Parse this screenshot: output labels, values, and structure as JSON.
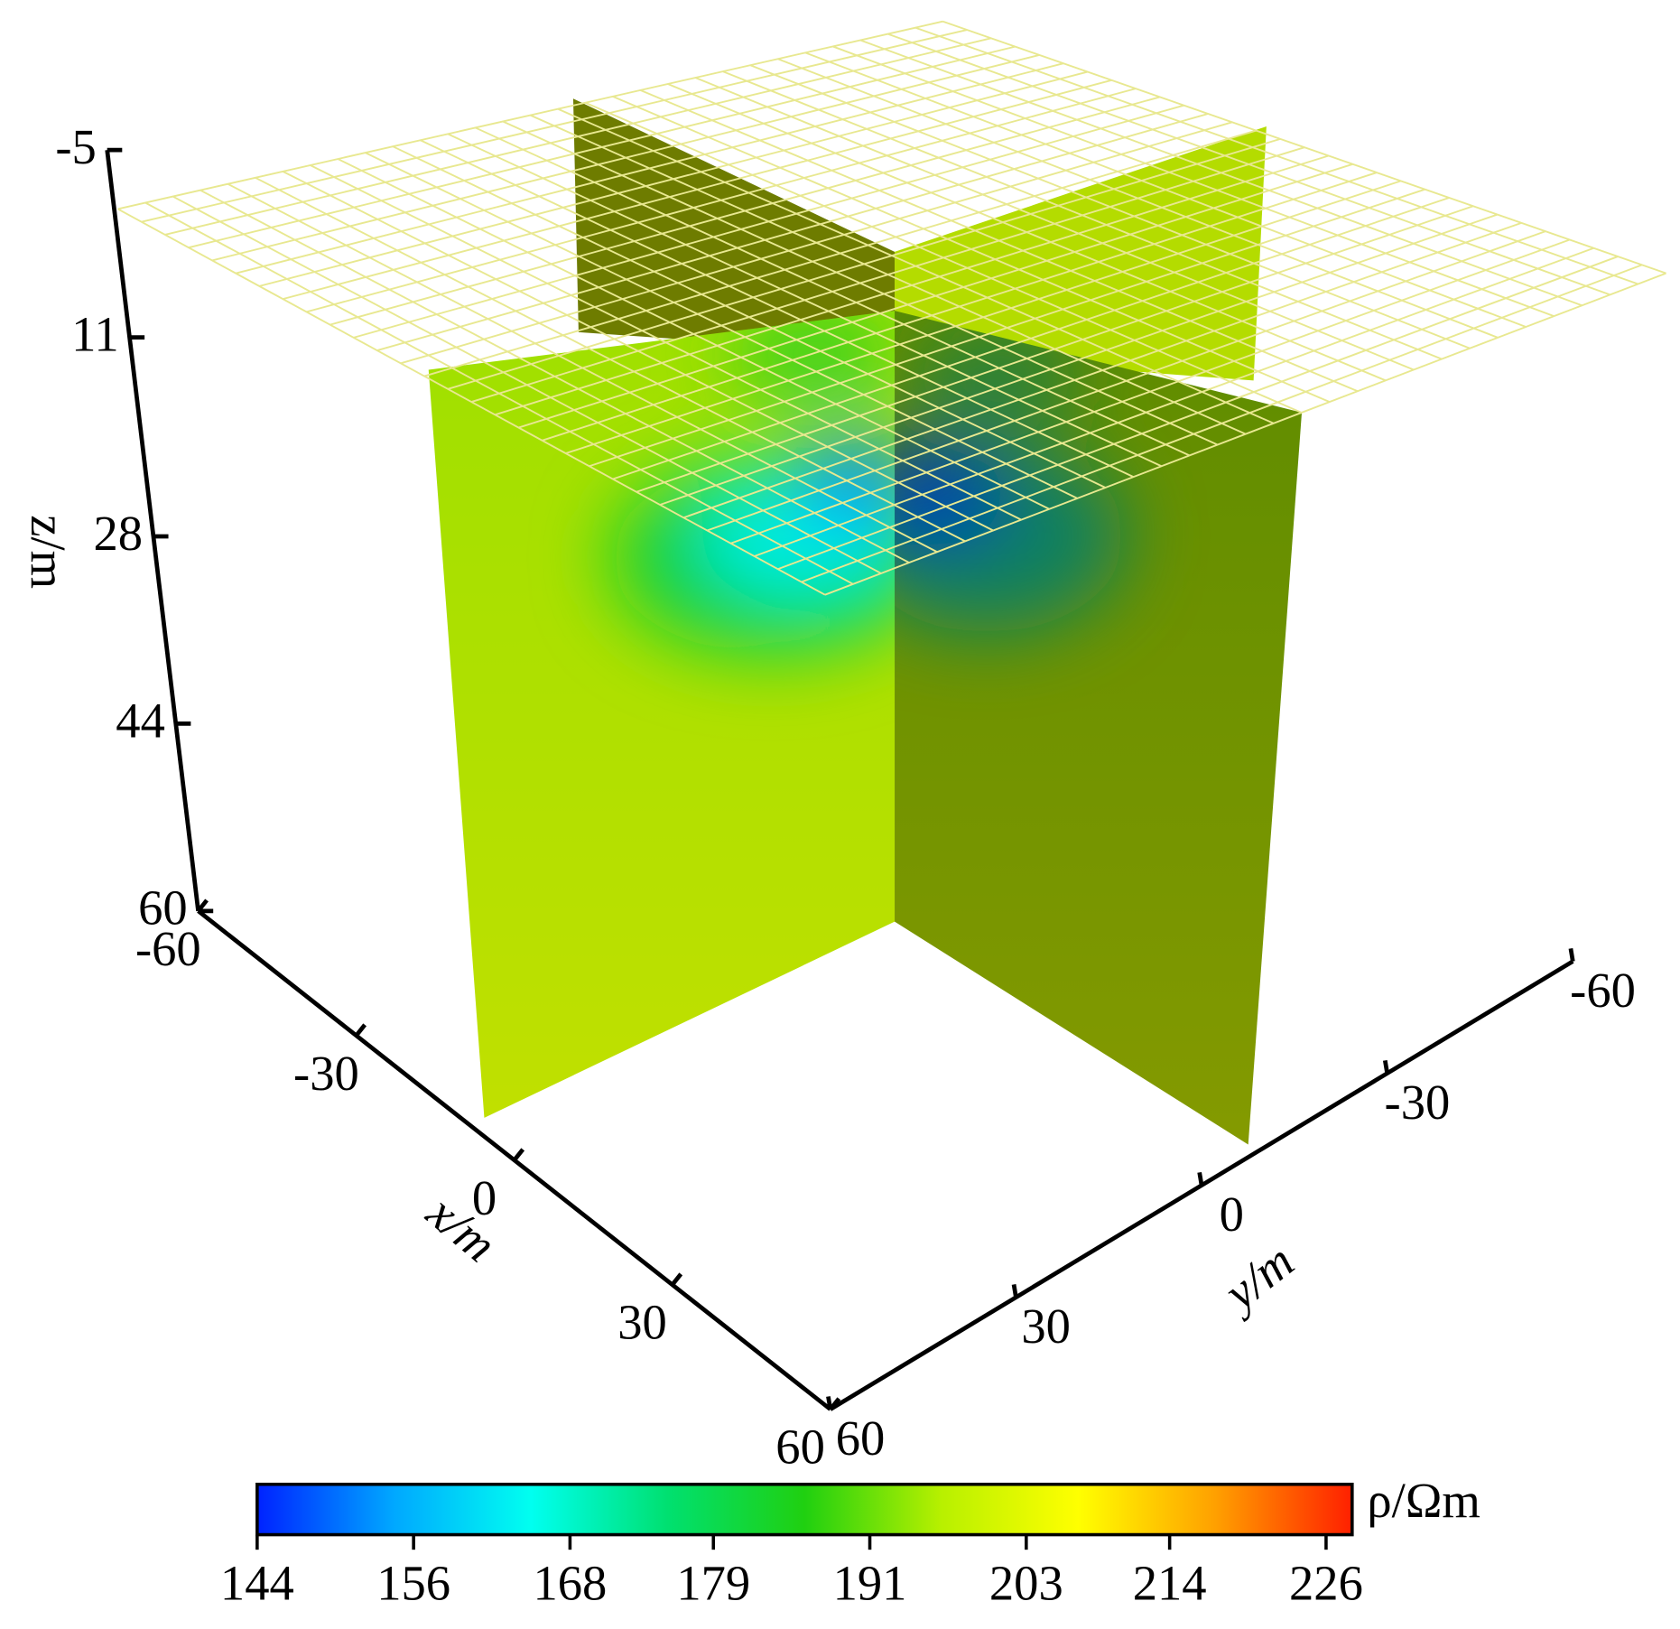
{
  "chart_data": {
    "type": "slice3d",
    "xlabel": "x/m",
    "ylabel": "y/m",
    "zlabel": "z/m",
    "xlim": [
      -60,
      60
    ],
    "xticks": [
      -60,
      -30,
      0,
      30,
      60
    ],
    "ylim": [
      60,
      -60
    ],
    "yticks": [
      60,
      30,
      0,
      -30,
      -60
    ],
    "zlim": [
      -5,
      60
    ],
    "zticks": [
      -5,
      11,
      28,
      44,
      60
    ],
    "colorbar": {
      "label": "ρ/Ωm",
      "lim": [
        144,
        228
      ],
      "ticks": [
        144,
        156,
        168,
        179,
        191,
        203,
        214,
        226
      ],
      "colors": [
        "#0022ff",
        "#00a8ff",
        "#00fff0",
        "#00e070",
        "#20d010",
        "#b8f000",
        "#ffff00",
        "#ffa000",
        "#ff2000"
      ]
    }
  }
}
